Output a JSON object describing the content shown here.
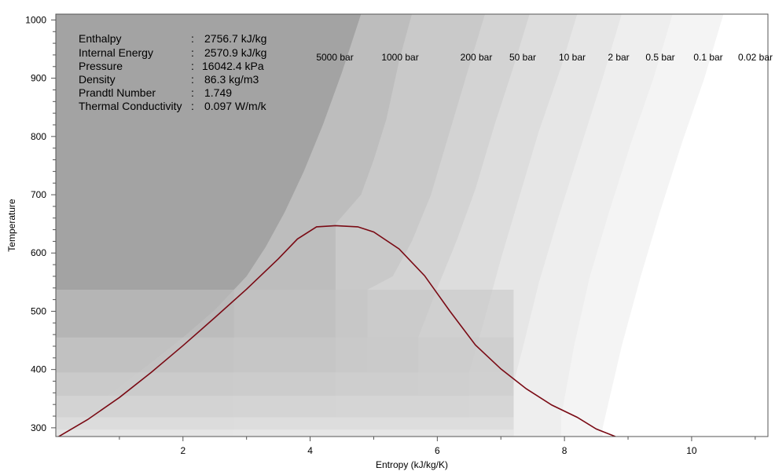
{
  "chart_data": {
    "type": "area",
    "title": "",
    "xlabel": "Entropy (kJ/kg/K)",
    "ylabel": "Temperature",
    "xlim": [
      0,
      11.2
    ],
    "ylim": [
      285,
      1010
    ],
    "xticks": [
      2,
      4,
      6,
      8,
      10
    ],
    "yticks": [
      300,
      400,
      500,
      600,
      700,
      800,
      900,
      1000
    ],
    "xtick_labels": [
      "2",
      "4",
      "6",
      "8",
      "10"
    ],
    "ytick_labels": [
      "300",
      "400",
      "500",
      "600",
      "700",
      "800",
      "900",
      "1000"
    ],
    "isobars": [
      {
        "label": "5000 bar",
        "color": "#a3a3a3",
        "points": [
          [
            0.05,
            292
          ],
          [
            0.5,
            330
          ],
          [
            1,
            370
          ],
          [
            1.5,
            412
          ],
          [
            2,
            455
          ],
          [
            2.5,
            502
          ],
          [
            3,
            560
          ],
          [
            3.3,
            610
          ],
          [
            3.6,
            670
          ],
          [
            3.9,
            740
          ],
          [
            4.2,
            820
          ],
          [
            4.5,
            910
          ],
          [
            4.8,
            1010
          ]
        ]
      },
      {
        "label": "1000 bar",
        "color": "#b2b2b2",
        "points": [
          [
            3.8,
            1010
          ],
          [
            3.6,
            935
          ],
          [
            3.4,
            850
          ],
          [
            3.2,
            760
          ],
          [
            3.0,
            690
          ],
          [
            2.8,
            640
          ]
        ]
      },
      {
        "label": "200 bar",
        "color": "#bdbdbd",
        "points": [
          [
            5.6,
            1010
          ],
          [
            5.4,
            930
          ],
          [
            5.2,
            830
          ],
          [
            5.0,
            760
          ],
          [
            4.8,
            700
          ],
          [
            4.4,
            650
          ]
        ]
      },
      {
        "label": "50 bar",
        "color": "#c9c9c9",
        "points": [
          [
            6.75,
            1010
          ],
          [
            6.5,
            920
          ],
          [
            6.2,
            810
          ],
          [
            5.9,
            700
          ],
          [
            5.6,
            620
          ],
          [
            5.3,
            560
          ],
          [
            4.9,
            537
          ]
        ]
      },
      {
        "label": "10 bar",
        "color": "#d3d3d3",
        "points": [
          [
            7.45,
            1010
          ],
          [
            7.2,
            920
          ],
          [
            6.9,
            820
          ],
          [
            6.6,
            710
          ],
          [
            6.3,
            620
          ],
          [
            6.0,
            540
          ],
          [
            5.7,
            455
          ]
        ]
      },
      {
        "label": "2 bar",
        "color": "#dddddd",
        "points": [
          [
            8.2,
            1010
          ],
          [
            7.95,
            920
          ],
          [
            7.6,
            810
          ],
          [
            7.3,
            700
          ],
          [
            7.0,
            590
          ],
          [
            6.7,
            470
          ],
          [
            6.5,
            395
          ]
        ]
      },
      {
        "label": "0.5 bar",
        "color": "#e6e6e6",
        "points": [
          [
            8.9,
            1010
          ],
          [
            8.6,
            900
          ],
          [
            8.25,
            780
          ],
          [
            7.9,
            660
          ],
          [
            7.6,
            550
          ],
          [
            7.35,
            440
          ],
          [
            7.15,
            355
          ]
        ]
      },
      {
        "label": "0.1 bar",
        "color": "#eeeeee",
        "points": [
          [
            9.7,
            1010
          ],
          [
            9.4,
            900
          ],
          [
            9.05,
            790
          ],
          [
            8.7,
            670
          ],
          [
            8.4,
            560
          ],
          [
            8.15,
            440
          ],
          [
            7.95,
            320
          ]
        ]
      },
      {
        "label": "0.02 bar",
        "color": "#f4f4f4",
        "points": [
          [
            10.5,
            1010
          ],
          [
            10.2,
            900
          ],
          [
            9.85,
            790
          ],
          [
            9.5,
            670
          ],
          [
            9.2,
            560
          ],
          [
            8.9,
            440
          ],
          [
            8.6,
            300
          ]
        ]
      }
    ],
    "saturation_dome": {
      "color": "#7a0a14",
      "points": [
        [
          0.0,
          282
        ],
        [
          0.5,
          314
        ],
        [
          1,
          352
        ],
        [
          1.5,
          395
        ],
        [
          2,
          441
        ],
        [
          2.5,
          489
        ],
        [
          3,
          538
        ],
        [
          3.5,
          590
        ],
        [
          3.8,
          624
        ],
        [
          4.1,
          645
        ],
        [
          4.4,
          647
        ],
        [
          4.75,
          645
        ],
        [
          5.0,
          636
        ],
        [
          5.4,
          607
        ],
        [
          5.8,
          561
        ],
        [
          6.2,
          500
        ],
        [
          6.6,
          442
        ],
        [
          7.0,
          401
        ],
        [
          7.4,
          367
        ],
        [
          7.8,
          339
        ],
        [
          8.2,
          318
        ],
        [
          8.5,
          298
        ],
        [
          8.8,
          285
        ]
      ]
    }
  },
  "info": [
    {
      "label": "Enthalpy",
      "sep": ":",
      "value": "2756.7 kJ/kg"
    },
    {
      "label": "Internal Energy",
      "sep": ":",
      "value": "2570.9 kJ/kg"
    },
    {
      "label": "Pressure",
      "sep": ":",
      "value": "16042.4 kPa"
    },
    {
      "label": "Density",
      "sep": ":",
      "value": "86.3 kg/m3"
    },
    {
      "label": "Prandtl Number",
      "sep": ":",
      "value": "1.749"
    },
    {
      "label": "Thermal Conductivity",
      "sep": ":",
      "value": "0.097 W/m/k"
    }
  ]
}
